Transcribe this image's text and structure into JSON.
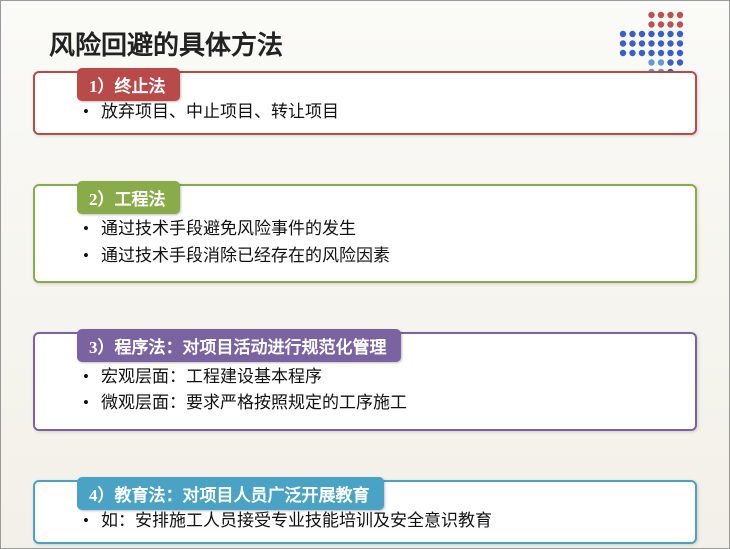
{
  "title": "风险回避的具体方法",
  "deco": {
    "rows": 7,
    "cols": 7,
    "dot_radius": 3.2,
    "gap": 9.5,
    "colors": {
      "default": "#3a5fcd",
      "alt1": "#c0504d",
      "alt2": "#5e9cd3"
    }
  },
  "cards": [
    {
      "header": "1）终止法",
      "header_bg": "#b84b4a",
      "border": "#b84b4a",
      "bullets": [
        "放弃项目、中止项目、转让项目"
      ]
    },
    {
      "header": "2）工程法",
      "header_bg": "#8aab4a",
      "border": "#8aab4a",
      "bullets": [
        "通过技术手段避免风险事件的发生",
        "通过技术手段消除已经存在的风险因素"
      ]
    },
    {
      "header": "3）程序法：对项目活动进行规范化管理",
      "header_bg": "#7a63a0",
      "border": "#7a63a0",
      "bullets": [
        "宏观层面：工程建设基本程序",
        "微观层面：要求严格按照规定的工序施工"
      ]
    },
    {
      "header": "4）教育法：对项目人员广泛开展教育",
      "header_bg": "#4aa3c4",
      "border": "#4aa3c4",
      "bullets": [
        "如：安排施工人员接受专业技能培训及安全意识教育"
      ]
    }
  ]
}
